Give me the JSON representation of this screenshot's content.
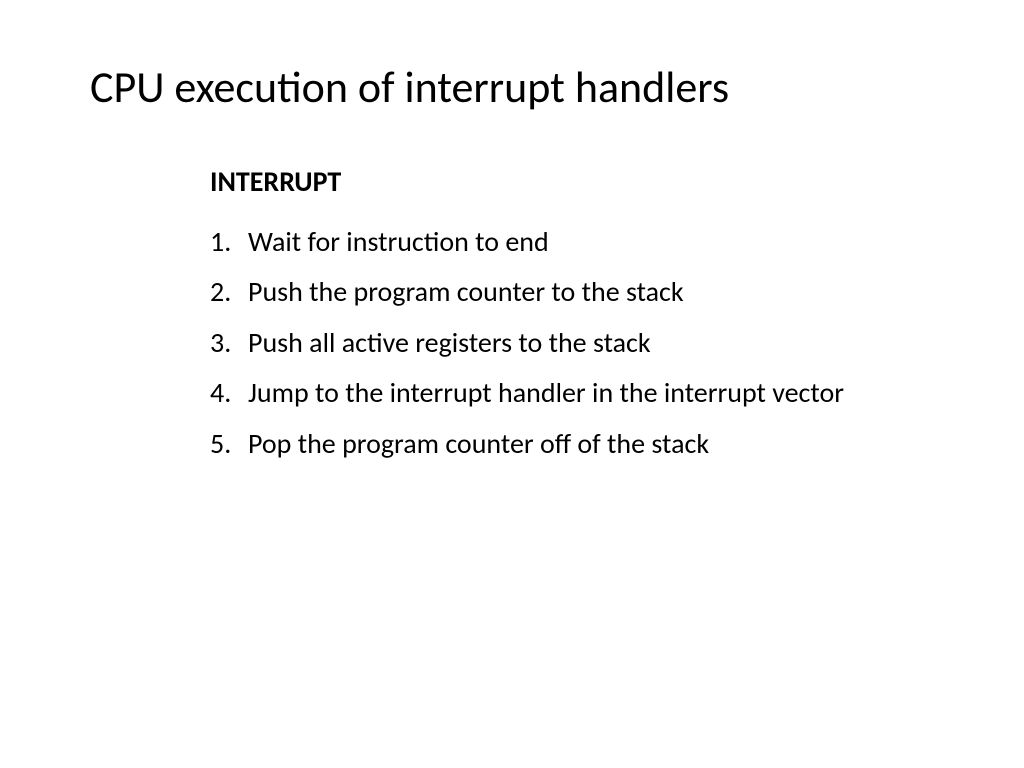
{
  "slide": {
    "title": "CPU execution of interrupt handlers",
    "subheading": "INTERRUPT",
    "items": [
      {
        "number": "1.",
        "text": "Wait for instruction to end"
      },
      {
        "number": "2.",
        "text": "Push the program counter to the stack"
      },
      {
        "number": "3.",
        "text": "Push all active registers to the stack"
      },
      {
        "number": "4.",
        "text": "Jump to the interrupt handler in the interrupt vector"
      },
      {
        "number": "5.",
        "text": "Pop the program counter off of the stack"
      }
    ],
    "styling": {
      "background_color": "#ffffff",
      "text_color": "#000000",
      "title_fontsize": 44,
      "title_weight": 400,
      "subheading_fontsize": 28,
      "subheading_weight": 700,
      "body_fontsize": 28,
      "body_weight": 400,
      "line_height": 1.8,
      "font_family": "Calibri"
    }
  }
}
